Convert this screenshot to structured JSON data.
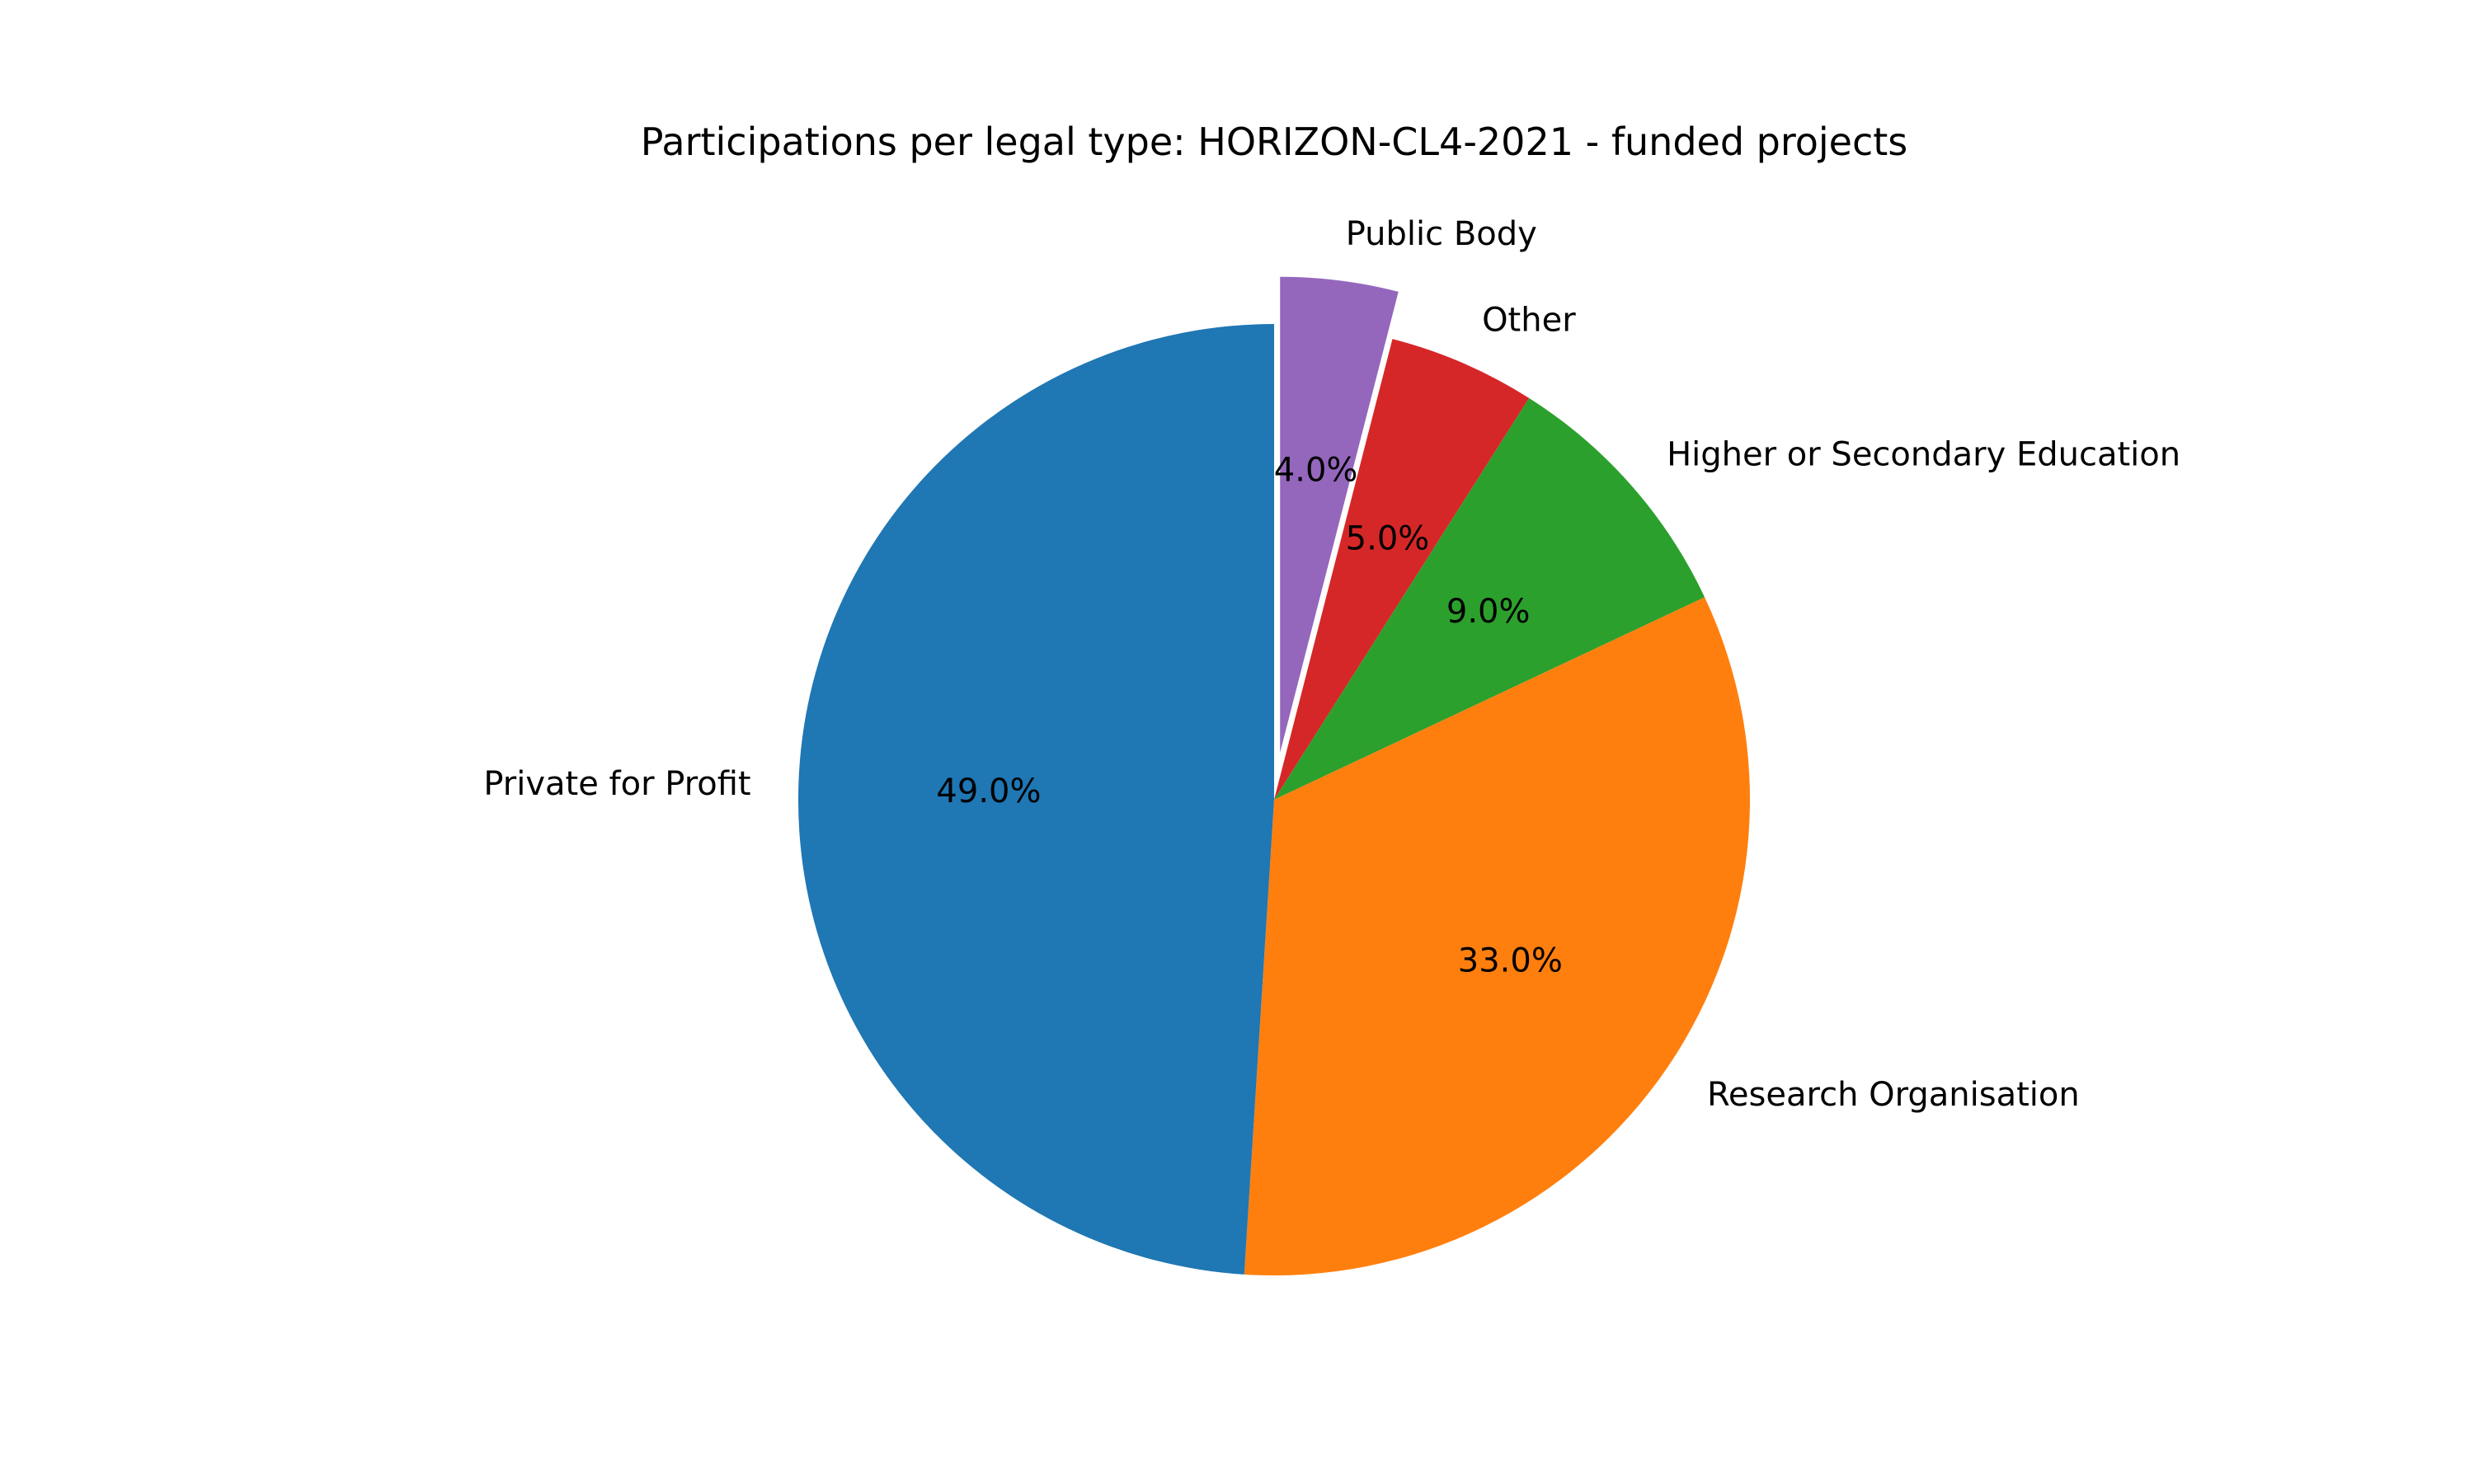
{
  "chart_data": {
    "type": "pie",
    "title": "Participations per legal type: HORIZON-CL4-2021 - funded projects",
    "slices": [
      {
        "label": "Public Body",
        "value": 4.0,
        "pct_label": "4.0%",
        "color": "#9467bd",
        "exploded": true
      },
      {
        "label": "Other",
        "value": 5.0,
        "pct_label": "5.0%",
        "color": "#d62728",
        "exploded": false
      },
      {
        "label": "Higher or Secondary Education",
        "value": 9.0,
        "pct_label": "9.0%",
        "color": "#2ca02c",
        "exploded": false
      },
      {
        "label": "Research Organisation",
        "value": 33.0,
        "pct_label": "33.0%",
        "color": "#ff7f0e",
        "exploded": false
      },
      {
        "label": "Private for Profit",
        "value": 49.0,
        "pct_label": "49.0%",
        "color": "#1f77b4",
        "exploded": false
      }
    ],
    "start_angle_deg": 90,
    "direction": "clockwise",
    "legend": "none"
  }
}
